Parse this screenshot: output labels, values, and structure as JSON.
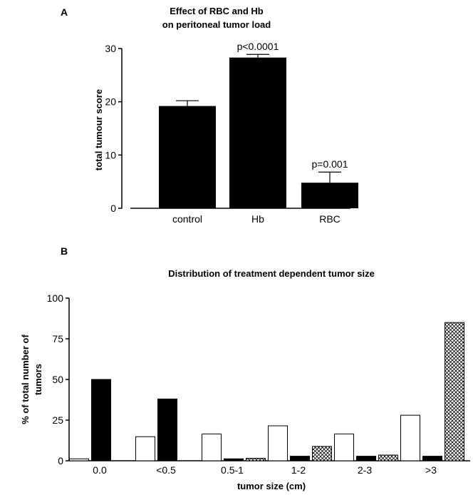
{
  "panel_a": {
    "label": "A",
    "title_line1": "Effect of RBC and Hb",
    "title_line2": "on peritoneal tumor load"
  },
  "panel_b": {
    "label": "B",
    "title": "Distribution of treatment dependent tumor size"
  },
  "colors": {
    "bar_black": "#000000",
    "bar_white": "#ffffff",
    "axis": "#000000"
  },
  "chart_data": [
    {
      "type": "bar",
      "title": "Effect of RBC and Hb on peritoneal tumor load",
      "categories": [
        "control",
        "Hb",
        "RBC"
      ],
      "values": [
        19.2,
        28.3,
        4.8
      ],
      "errors": [
        1.0,
        0.6,
        2.0
      ],
      "annotations": [
        "",
        "p<0.0001",
        "p=0.001"
      ],
      "xlabel": "",
      "ylabel": "total tumour score",
      "ylim": [
        0,
        30
      ],
      "yticks": [
        "0",
        "10",
        "20",
        "30"
      ],
      "grid": false
    },
    {
      "type": "bar",
      "title": "Distribution of treatment dependent tumor size",
      "categories": [
        "0.0",
        "<0.5",
        "0.5-1",
        "1-2",
        "2-3",
        ">3"
      ],
      "series": [
        {
          "style": "white",
          "values": [
            1.2,
            14.8,
            16.5,
            21.5,
            16.5,
            28.0
          ]
        },
        {
          "style": "black",
          "values": [
            50.0,
            38.0,
            1.2,
            2.8,
            2.8,
            2.8
          ]
        },
        {
          "style": "crosshatch",
          "values": [
            null,
            null,
            1.5,
            8.8,
            3.5,
            85.0
          ]
        }
      ],
      "xlabel": "tumor size (cm)",
      "ylabel": "% of total number of tumors",
      "ylabel_line1": "% of total number of",
      "ylabel_line2": "tumors",
      "ylim": [
        0,
        100
      ],
      "yticks": [
        "0",
        "25",
        "50",
        "75",
        "100"
      ],
      "grid": false
    }
  ]
}
